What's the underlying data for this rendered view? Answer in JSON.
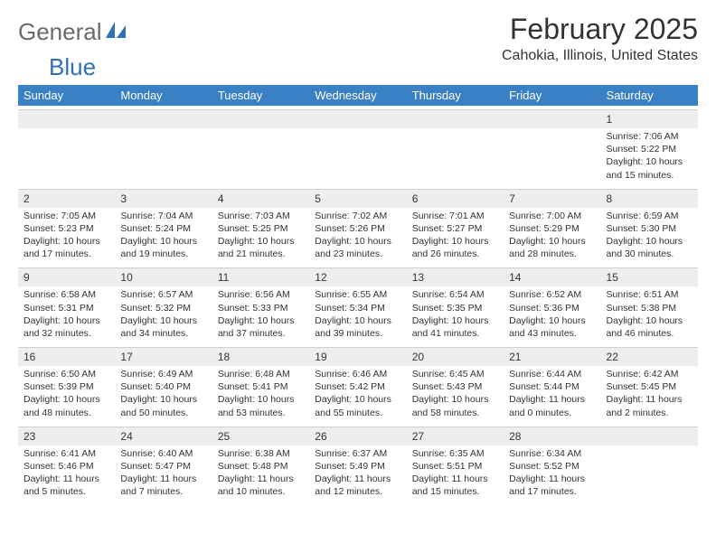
{
  "logo": {
    "part1": "General",
    "part2": "Blue"
  },
  "header": {
    "title": "February 2025",
    "location": "Cahokia, Illinois, United States"
  },
  "colors": {
    "header_bg": "#3a80c4",
    "header_text": "#ffffff",
    "daynum_bg": "#eeeeee",
    "logo_gray": "#6a6a6a",
    "logo_blue": "#2f71b8"
  },
  "weekdays": [
    "Sunday",
    "Monday",
    "Tuesday",
    "Wednesday",
    "Thursday",
    "Friday",
    "Saturday"
  ],
  "weeks": [
    {
      "nums": [
        "",
        "",
        "",
        "",
        "",
        "",
        "1"
      ],
      "details": [
        "",
        "",
        "",
        "",
        "",
        "",
        "Sunrise: 7:06 AM\nSunset: 5:22 PM\nDaylight: 10 hours and 15 minutes."
      ]
    },
    {
      "nums": [
        "2",
        "3",
        "4",
        "5",
        "6",
        "7",
        "8"
      ],
      "details": [
        "Sunrise: 7:05 AM\nSunset: 5:23 PM\nDaylight: 10 hours and 17 minutes.",
        "Sunrise: 7:04 AM\nSunset: 5:24 PM\nDaylight: 10 hours and 19 minutes.",
        "Sunrise: 7:03 AM\nSunset: 5:25 PM\nDaylight: 10 hours and 21 minutes.",
        "Sunrise: 7:02 AM\nSunset: 5:26 PM\nDaylight: 10 hours and 23 minutes.",
        "Sunrise: 7:01 AM\nSunset: 5:27 PM\nDaylight: 10 hours and 26 minutes.",
        "Sunrise: 7:00 AM\nSunset: 5:29 PM\nDaylight: 10 hours and 28 minutes.",
        "Sunrise: 6:59 AM\nSunset: 5:30 PM\nDaylight: 10 hours and 30 minutes."
      ]
    },
    {
      "nums": [
        "9",
        "10",
        "11",
        "12",
        "13",
        "14",
        "15"
      ],
      "details": [
        "Sunrise: 6:58 AM\nSunset: 5:31 PM\nDaylight: 10 hours and 32 minutes.",
        "Sunrise: 6:57 AM\nSunset: 5:32 PM\nDaylight: 10 hours and 34 minutes.",
        "Sunrise: 6:56 AM\nSunset: 5:33 PM\nDaylight: 10 hours and 37 minutes.",
        "Sunrise: 6:55 AM\nSunset: 5:34 PM\nDaylight: 10 hours and 39 minutes.",
        "Sunrise: 6:54 AM\nSunset: 5:35 PM\nDaylight: 10 hours and 41 minutes.",
        "Sunrise: 6:52 AM\nSunset: 5:36 PM\nDaylight: 10 hours and 43 minutes.",
        "Sunrise: 6:51 AM\nSunset: 5:38 PM\nDaylight: 10 hours and 46 minutes."
      ]
    },
    {
      "nums": [
        "16",
        "17",
        "18",
        "19",
        "20",
        "21",
        "22"
      ],
      "details": [
        "Sunrise: 6:50 AM\nSunset: 5:39 PM\nDaylight: 10 hours and 48 minutes.",
        "Sunrise: 6:49 AM\nSunset: 5:40 PM\nDaylight: 10 hours and 50 minutes.",
        "Sunrise: 6:48 AM\nSunset: 5:41 PM\nDaylight: 10 hours and 53 minutes.",
        "Sunrise: 6:46 AM\nSunset: 5:42 PM\nDaylight: 10 hours and 55 minutes.",
        "Sunrise: 6:45 AM\nSunset: 5:43 PM\nDaylight: 10 hours and 58 minutes.",
        "Sunrise: 6:44 AM\nSunset: 5:44 PM\nDaylight: 11 hours and 0 minutes.",
        "Sunrise: 6:42 AM\nSunset: 5:45 PM\nDaylight: 11 hours and 2 minutes."
      ]
    },
    {
      "nums": [
        "23",
        "24",
        "25",
        "26",
        "27",
        "28",
        ""
      ],
      "details": [
        "Sunrise: 6:41 AM\nSunset: 5:46 PM\nDaylight: 11 hours and 5 minutes.",
        "Sunrise: 6:40 AM\nSunset: 5:47 PM\nDaylight: 11 hours and 7 minutes.",
        "Sunrise: 6:38 AM\nSunset: 5:48 PM\nDaylight: 11 hours and 10 minutes.",
        "Sunrise: 6:37 AM\nSunset: 5:49 PM\nDaylight: 11 hours and 12 minutes.",
        "Sunrise: 6:35 AM\nSunset: 5:51 PM\nDaylight: 11 hours and 15 minutes.",
        "Sunrise: 6:34 AM\nSunset: 5:52 PM\nDaylight: 11 hours and 17 minutes.",
        ""
      ]
    }
  ]
}
